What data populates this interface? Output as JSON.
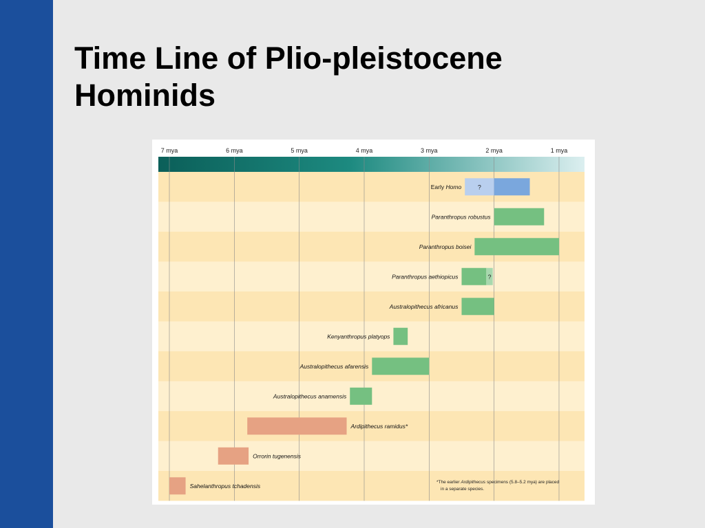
{
  "slide": {
    "title": "Time Line of Plio-pleistocene Hominids",
    "colors": {
      "background": "#e9e9e9",
      "side_bar": "#1b4f9c"
    }
  },
  "chart_data": {
    "type": "bar",
    "orientation": "horizontal",
    "title": "",
    "x_axis": {
      "unit": "mya",
      "reversed": true,
      "range": [
        7.1,
        0.6
      ],
      "ticks": [
        7,
        6,
        5,
        4,
        3,
        2,
        1
      ],
      "tick_labels": [
        "7 mya",
        "6 mya",
        "5 mya",
        "4 mya",
        "3 mya",
        "2 mya",
        "1 mya"
      ]
    },
    "grid": true,
    "species": [
      {
        "name": "Early ",
        "name_italic": "Homo",
        "start": 2.45,
        "end": 1.45,
        "uncertain_until": 2.0,
        "uncertain_text": "?",
        "color": "#7aa7dd",
        "uncertain_color": "#b9cfee"
      },
      {
        "name": "Paranthropus robustus",
        "start": 2.0,
        "end": 1.23,
        "color": "#75c081"
      },
      {
        "name": "Paranthropus boisei",
        "start": 2.3,
        "end": 1.0,
        "color": "#75c081"
      },
      {
        "name": "Paranthropus aethiopicus",
        "start": 2.5,
        "end": 2.12,
        "uncertain_end": 2.12,
        "uncertain_to": 2.02,
        "uncertain_text": "?",
        "color": "#75c081",
        "uncertain_color": "#a8d8ae"
      },
      {
        "name": "Australopithecus africanus",
        "start": 2.5,
        "end": 2.0,
        "color": "#75c081"
      },
      {
        "name": "Kenyanthropus platyops",
        "start": 3.55,
        "end": 3.33,
        "color": "#75c081"
      },
      {
        "name": "Australopithecus afarensis",
        "start": 3.88,
        "end": 3.0,
        "color": "#75c081"
      },
      {
        "name": "Australopithecus anamensis",
        "start": 4.22,
        "end": 3.88,
        "color": "#75c081"
      },
      {
        "name": "Ardipithecus ramidus*",
        "start": 5.8,
        "end": 4.27,
        "color": "#e6a283"
      },
      {
        "name": "Orrorin tugenensis",
        "start": 6.25,
        "end": 5.78,
        "color": "#e6a283"
      },
      {
        "name": "Sahelanthropus tchadensis",
        "start": 7.0,
        "end": 6.75,
        "color": "#e6a283"
      }
    ],
    "colors": {
      "band_dark": "#fde6b4",
      "band_light": "#fef0cf",
      "gradient_start": "#0b5f59",
      "gradient_mid": "#1d8a80",
      "gradient_end": "#dceff0"
    },
    "footnote": {
      "pre": "*The earlier ",
      "italic": "Ardipithecus",
      "post": " specimens (5.8–5.2 mya) are placed",
      "line2": "in a separate species."
    }
  }
}
